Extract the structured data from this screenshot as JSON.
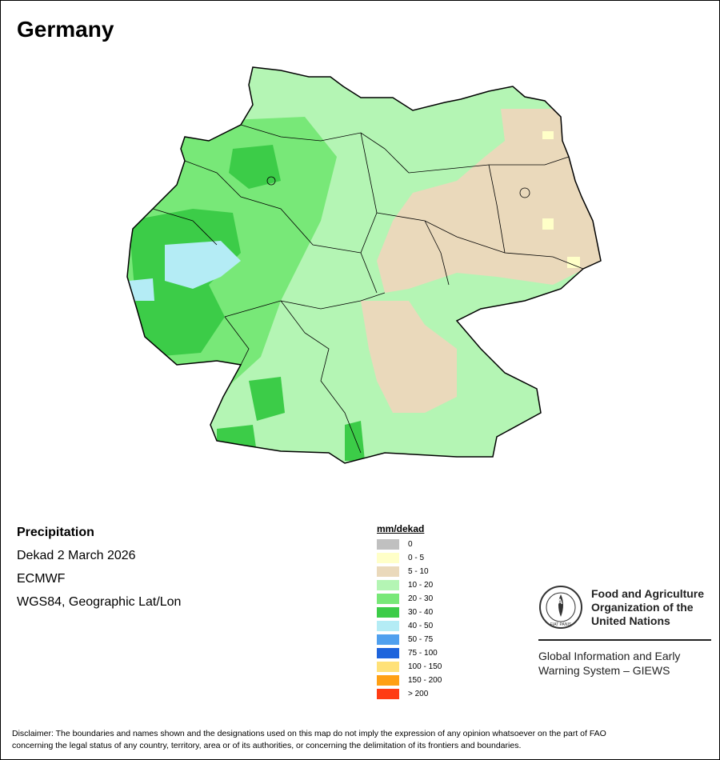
{
  "title": "Germany",
  "info": {
    "variable": "Precipitation",
    "period": "Dekad 2 March 2026",
    "source": "ECMWF",
    "projection": "WGS84, Geographic Lat/Lon"
  },
  "legend": {
    "unit": "mm/dekad",
    "classes": [
      {
        "label": "0",
        "color": "#c0c0c0"
      },
      {
        "label": "0 - 5",
        "color": "#ffffc8"
      },
      {
        "label": "5 - 10",
        "color": "#ead9bb"
      },
      {
        "label": "10 - 20",
        "color": "#b4f5b4"
      },
      {
        "label": "20 - 30",
        "color": "#78e878"
      },
      {
        "label": "30 - 40",
        "color": "#3ccc48"
      },
      {
        "label": "40 - 50",
        "color": "#b4ecf5"
      },
      {
        "label": "50 - 75",
        "color": "#50a0ee"
      },
      {
        "label": "75 - 100",
        "color": "#1e64dc"
      },
      {
        "label": "100 - 150",
        "color": "#ffe178"
      },
      {
        "label": "150 - 200",
        "color": "#ffa014"
      },
      {
        "label": "> 200",
        "color": "#ff3c14"
      }
    ]
  },
  "fao": {
    "name_line1": "Food and Agriculture",
    "name_line2": "Organization of the",
    "name_line3": "United Nations",
    "logo_text": "FAO",
    "logo_motto": "FIAT PANIS",
    "giews_line1": "Global Information and Early",
    "giews_line2": "Warning System – GIEWS"
  },
  "disclaimer_line1": "Disclaimer: The boundaries and names shown and the designations used on this map do not imply the expression of any opinion whatsoever on the part of FAO",
  "disclaimer_line2": "concerning the legal status of any country, territory, area or of its authorities, or concerning the delimitation of its frontiers and boundaries."
}
